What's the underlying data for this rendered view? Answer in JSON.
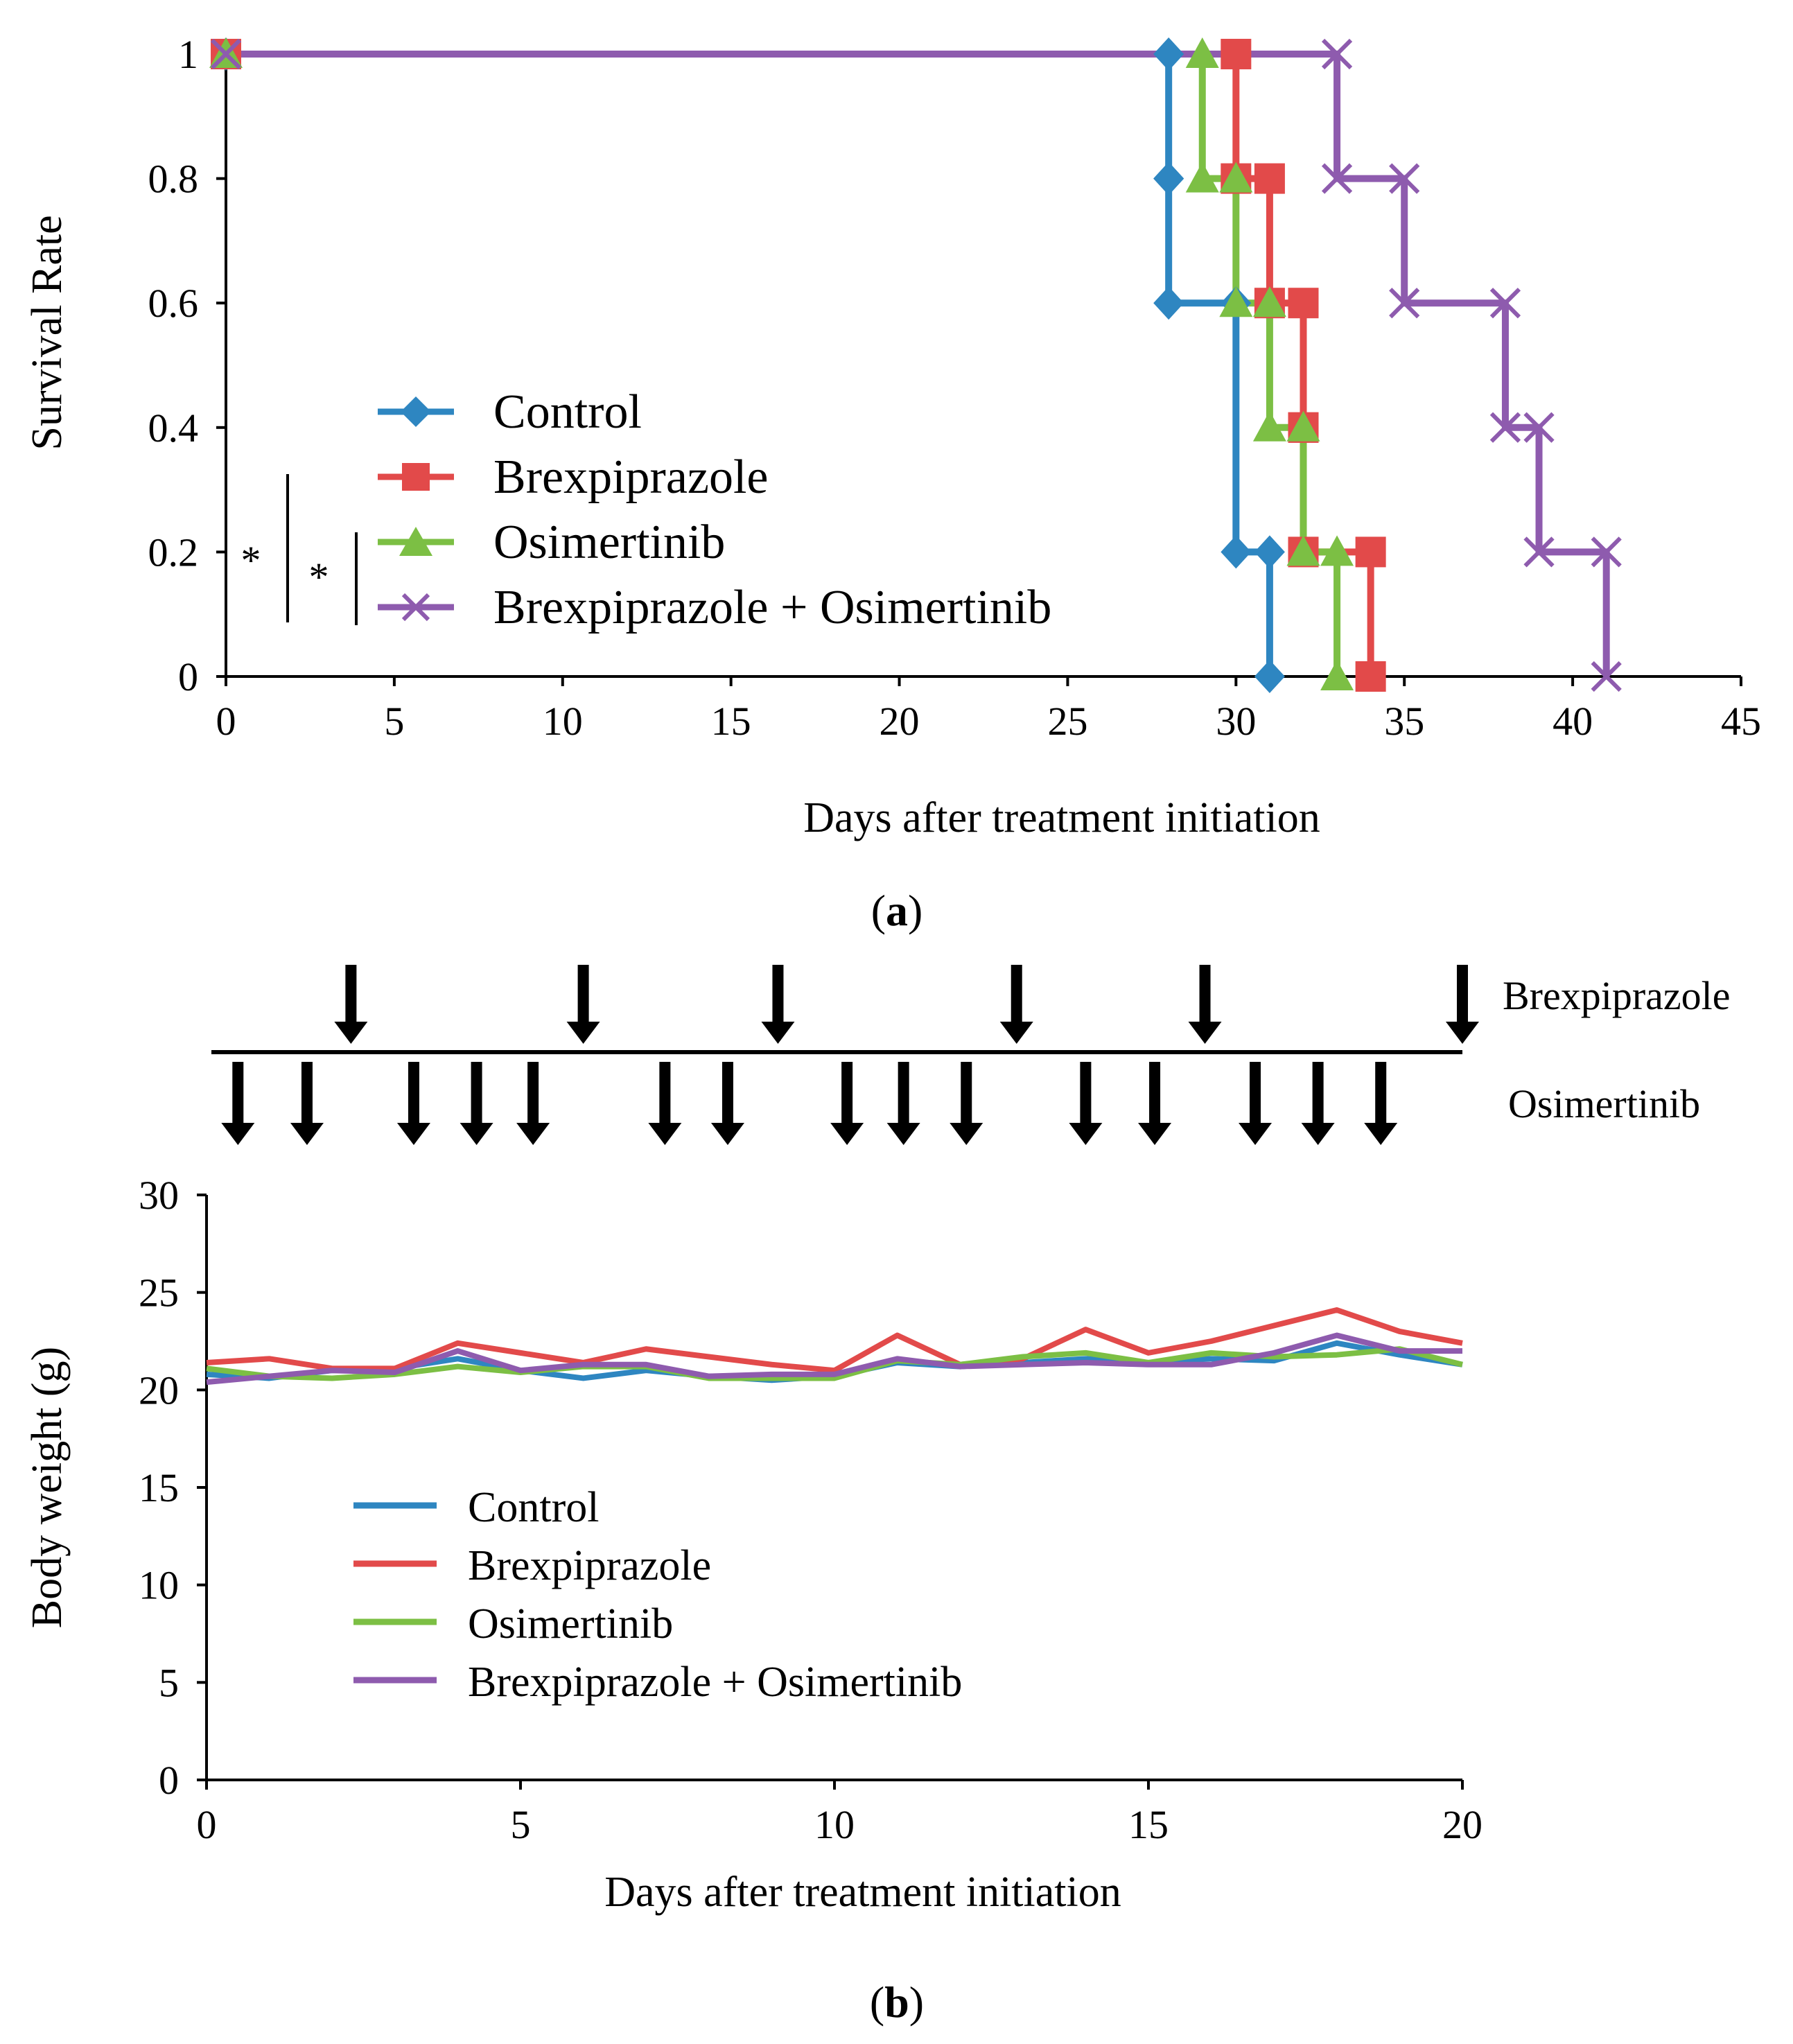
{
  "chart_data": [
    {
      "type": "line",
      "step": true,
      "panel_label_open": "(",
      "panel_label_letter": "a",
      "panel_label_close": ")",
      "title": "",
      "xlabel": "Days after treatment initiation",
      "ylabel": "Survival Rate",
      "xlim": [
        0,
        45
      ],
      "ylim": [
        0,
        1
      ],
      "xticks": [
        0,
        5,
        10,
        15,
        20,
        25,
        30,
        35,
        40,
        45
      ],
      "yticks": [
        0,
        0.2,
        0.4,
        0.6,
        0.8,
        1
      ],
      "ytick_labels": [
        "0",
        "0.2",
        "0.4",
        "0.6",
        "0.8",
        "1"
      ],
      "legend_position": "center-left",
      "series": [
        {
          "name": "Control",
          "color": "#2E86C1",
          "marker": "diamond",
          "x": [
            0,
            28,
            28,
            30,
            31
          ],
          "y": [
            1,
            0.8,
            0.6,
            0.2,
            0
          ]
        },
        {
          "name": "Brexpiprazole",
          "color": "#E24A4A",
          "marker": "square",
          "x": [
            0,
            30,
            31,
            32,
            32,
            34
          ],
          "y": [
            1,
            0.8,
            0.6,
            0.4,
            0.2,
            0
          ]
        },
        {
          "name": "Osimertinib",
          "color": "#7CBF44",
          "marker": "triangle",
          "x": [
            0,
            29,
            30,
            31,
            32,
            33
          ],
          "y": [
            1,
            0.8,
            0.6,
            0.4,
            0.2,
            0
          ]
        },
        {
          "name": "Brexpiprazole + Osimertinib",
          "color": "#8E5BAE",
          "marker": "x",
          "x": [
            0,
            33,
            35,
            38,
            39,
            41
          ],
          "y": [
            1,
            0.8,
            0.6,
            0.4,
            0.2,
            0
          ]
        }
      ],
      "annotations": [
        "*",
        "*"
      ]
    },
    {
      "type": "line",
      "panel_label_open": "(",
      "panel_label_letter": "b",
      "panel_label_close": ")",
      "title": "",
      "xlabel": "Days after treatment initiation",
      "ylabel": "Body weight (g)",
      "xlim": [
        0,
        20
      ],
      "ylim": [
        0,
        30
      ],
      "xticks": [
        0,
        5,
        10,
        15,
        20
      ],
      "yticks": [
        0,
        5,
        10,
        15,
        20,
        25,
        30
      ],
      "legend_position": "center-left",
      "x": [
        0,
        1,
        2,
        3,
        4,
        5,
        6,
        7,
        8,
        9,
        10,
        11,
        12,
        13,
        14,
        15,
        16,
        17,
        18,
        19,
        20
      ],
      "series": [
        {
          "name": "Control",
          "color": "#2E86C1",
          "values": [
            20.8,
            20.6,
            21.0,
            21.1,
            21.6,
            21.0,
            20.6,
            21.0,
            20.7,
            20.5,
            20.7,
            21.4,
            21.2,
            21.4,
            21.6,
            21.4,
            21.6,
            21.5,
            22.4,
            21.8,
            21.3
          ]
        },
        {
          "name": "Brexpiprazole",
          "color": "#E24A4A",
          "values": [
            21.4,
            21.6,
            21.1,
            21.1,
            22.4,
            21.9,
            21.4,
            22.1,
            21.7,
            21.3,
            21.0,
            22.8,
            21.3,
            21.6,
            23.1,
            21.9,
            22.5,
            23.3,
            24.1,
            23.0,
            22.4
          ]
        },
        {
          "name": "Osimertinib",
          "color": "#7CBF44",
          "values": [
            21.1,
            20.7,
            20.6,
            20.8,
            21.2,
            20.9,
            21.2,
            21.2,
            20.6,
            20.6,
            20.6,
            21.5,
            21.3,
            21.7,
            21.9,
            21.4,
            21.9,
            21.7,
            21.8,
            22.1,
            21.3
          ]
        },
        {
          "name": "Brexpiprazole + Osimertinib",
          "color": "#8E5BAE",
          "values": [
            20.4,
            20.7,
            21.0,
            20.9,
            22.0,
            21.0,
            21.3,
            21.3,
            20.7,
            20.8,
            20.8,
            21.6,
            21.2,
            21.3,
            21.4,
            21.3,
            21.3,
            21.9,
            22.8,
            22.0,
            22.0
          ]
        }
      ],
      "dosing": {
        "brexpiprazole_label": "Brexpiprazole",
        "osimertinib_label": "Osimertinib",
        "brexpiprazole_days": [
          2.3,
          6.0,
          9.1,
          12.9,
          15.9,
          20.0
        ],
        "osimertinib_days": [
          0.5,
          1.6,
          3.3,
          4.3,
          5.2,
          7.3,
          8.3,
          10.2,
          11.1,
          12.1,
          14.0,
          15.1,
          16.7,
          17.7,
          18.7
        ]
      }
    }
  ]
}
